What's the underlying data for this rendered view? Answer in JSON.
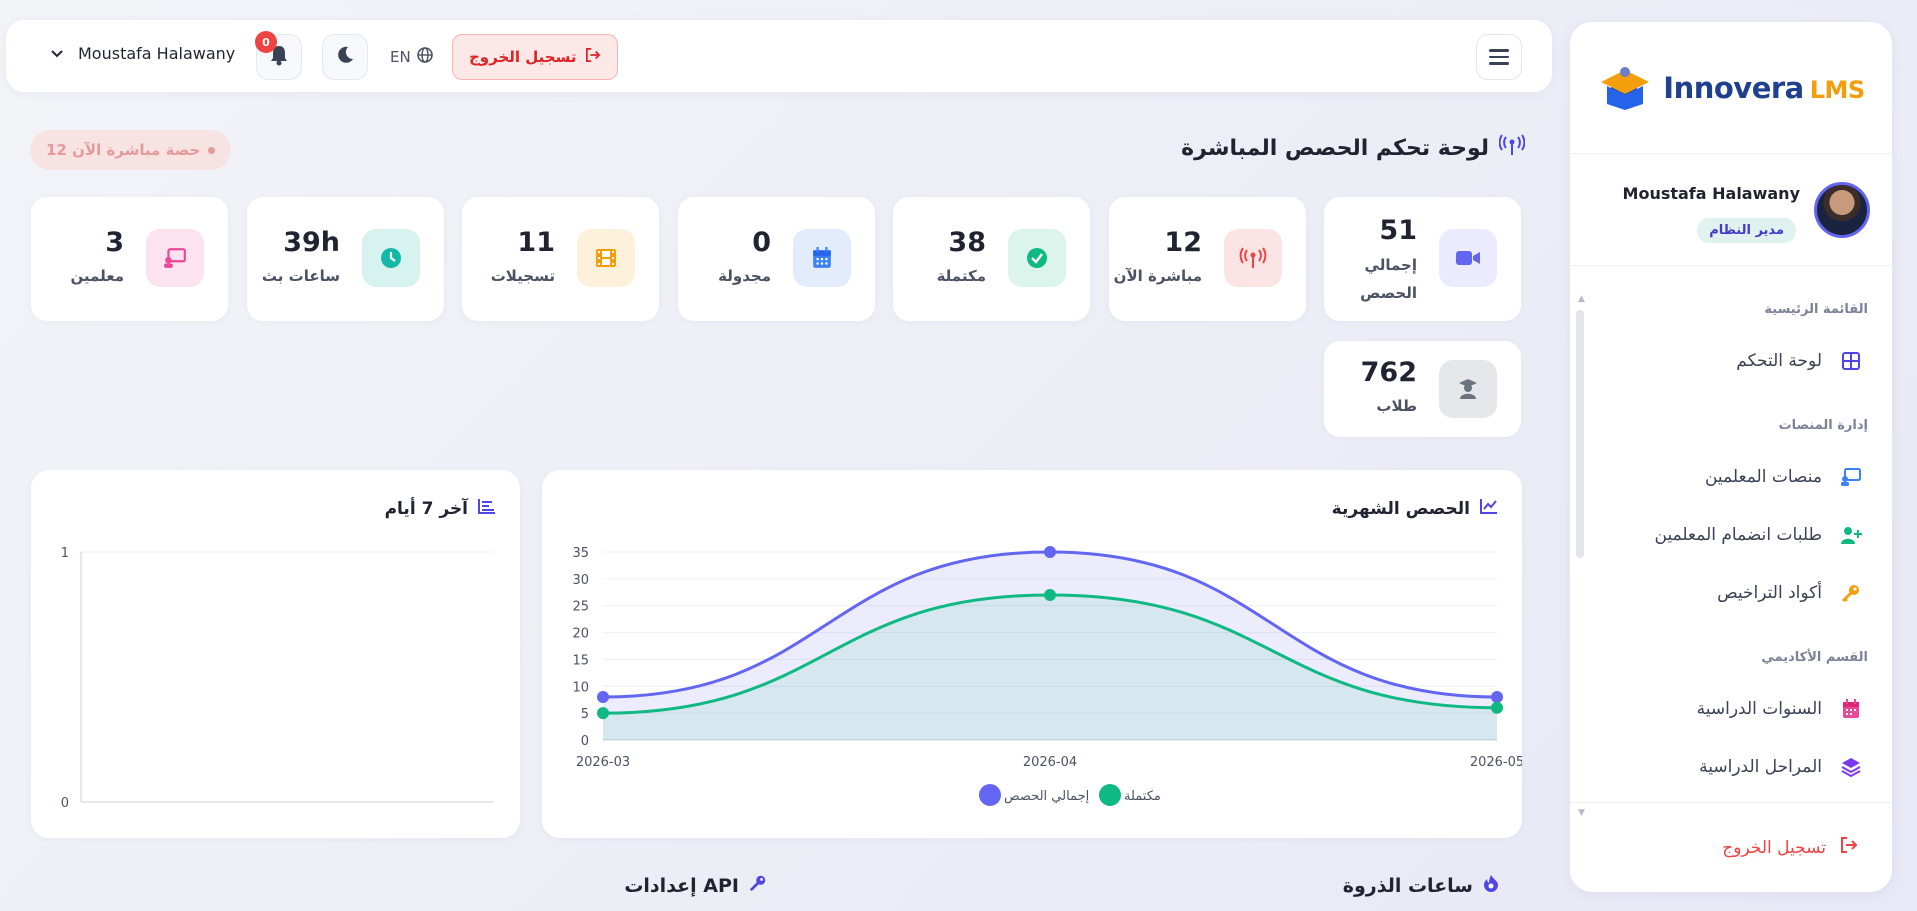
{
  "brand": {
    "name": "Innovera",
    "suffix": "LMS"
  },
  "topbar": {
    "logout_label": "تسجيل الخروج",
    "lang_label": "EN",
    "notifications_count": "0",
    "user_name": "Moustafa Halawany"
  },
  "sidebar": {
    "profile_name": "Moustafa Halawany",
    "profile_role": "مدير النظام",
    "sections": [
      {
        "title": "القائمة الرئيسية"
      },
      {
        "title": "إدارة المنصات"
      },
      {
        "title": "القسم الأكاديمي"
      }
    ],
    "items": [
      {
        "label": "لوحة التحكم",
        "icon": "grid-icon",
        "color": "#4f46e5"
      },
      {
        "label": "منصات المعلمين",
        "icon": "teacher-board-icon",
        "color": "#3b82f6"
      },
      {
        "label": "طلبات انضمام المعلمين",
        "icon": "user-plus-icon",
        "color": "#10b981"
      },
      {
        "label": "أكواد التراخيص",
        "icon": "key-icon",
        "color": "#f59e0b"
      },
      {
        "label": "السنوات الدراسية",
        "icon": "calendar-icon",
        "color": "#ec4899"
      },
      {
        "label": "المراحل الدراسية",
        "icon": "layers-icon",
        "color": "#7c3aed"
      }
    ],
    "logout_label": "تسجيل الخروج"
  },
  "page": {
    "title": "لوحة تحكم الحصص المباشرة",
    "live_pill": "12 حصة مباشرة الآن"
  },
  "stats": [
    {
      "value": "51",
      "label": "إجمالي الحصص",
      "icon": "video-icon",
      "bg": "#ecebfd",
      "fg": "#6366f1"
    },
    {
      "value": "12",
      "label": "مباشرة الآن",
      "icon": "broadcast-icon",
      "bg": "#fde4e4",
      "fg": "#ef4444"
    },
    {
      "value": "38",
      "label": "مكتملة",
      "icon": "check-circle-icon",
      "bg": "#dcf5ec",
      "fg": "#10b981"
    },
    {
      "value": "0",
      "label": "مجدولة",
      "icon": "calendar-icon",
      "bg": "#e3ecfd",
      "fg": "#3b82f6"
    },
    {
      "value": "11",
      "label": "تسجيلات",
      "icon": "film-icon",
      "bg": "#fdf1dc",
      "fg": "#f59e0b"
    },
    {
      "value": "39h",
      "label": "ساعات بث",
      "icon": "clock-icon",
      "bg": "#d7f3ef",
      "fg": "#14b8a6"
    },
    {
      "value": "3",
      "label": "معلمين",
      "icon": "teacher-board-icon",
      "bg": "#fde2ef",
      "fg": "#ec4899"
    },
    {
      "value": "762",
      "label": "طلاب",
      "icon": "student-icon",
      "bg": "#e6e7ea",
      "fg": "#6b7280"
    }
  ],
  "monthly_chart_title": "الحصص الشهرية",
  "weekly_chart_title": "آخر 7 أيام",
  "chart_data": [
    {
      "type": "area",
      "title": "الحصص الشهرية",
      "categories": [
        "2026-03",
        "2026-04",
        "2026-05"
      ],
      "series": [
        {
          "name": "إجمالي الحصص",
          "values": [
            8,
            35,
            8
          ],
          "color": "#6366f1"
        },
        {
          "name": "مكتملة",
          "values": [
            5,
            27,
            6
          ],
          "color": "#10b981"
        }
      ],
      "ylim": [
        0,
        35
      ],
      "yticks": [
        0,
        5,
        10,
        15,
        20,
        25,
        30,
        35
      ],
      "legend": "bottom",
      "grid": true
    },
    {
      "type": "bar",
      "title": "آخر 7 أيام",
      "categories": [],
      "values": [],
      "ylim": [
        0,
        1
      ],
      "yticks": [
        0,
        1
      ],
      "grid": true
    }
  ],
  "sections": {
    "peak_hours": "ساعات الذروة",
    "api_settings": "إعدادات API"
  }
}
